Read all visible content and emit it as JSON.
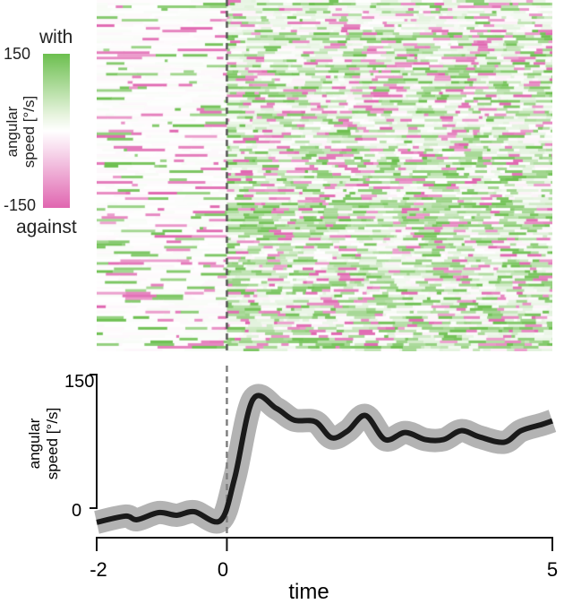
{
  "colorbar": {
    "top_label": "with",
    "bottom_label": "against",
    "max": "150",
    "min": "-150",
    "label_line1": "angular",
    "label_line2": "speed [°/s]",
    "colors": {
      "max": "#6cbf4f",
      "mid": "#ffffff",
      "min": "#e066b0"
    }
  },
  "chart_data": [
    {
      "type": "heatmap",
      "title": "",
      "xlim": [
        -2,
        5
      ],
      "clim": [
        -150,
        150
      ],
      "rows": 130,
      "event_time": 0,
      "description_values": {
        "pre_event": "mostly near 0 with sparse streaks",
        "post_event": "mostly positive (green) with scattered negative"
      }
    },
    {
      "type": "line",
      "ylabel_line1": "angular",
      "ylabel_line2": "speed [°/s]",
      "xlabel": "time",
      "xlim": [
        -2,
        5
      ],
      "ylim": [
        -15,
        150
      ],
      "xticks": [
        "-2",
        "0",
        "5"
      ],
      "yticks": [
        "0",
        "150"
      ],
      "event_time": 0,
      "x": [
        -2,
        -1.56,
        -1.38,
        -1.05,
        -0.77,
        -0.5,
        -0.1,
        0.12,
        0.4,
        0.76,
        1.03,
        1.36,
        1.61,
        1.86,
        2.13,
        2.43,
        2.74,
        3.05,
        3.33,
        3.6,
        3.88,
        4.26,
        4.52,
        4.84,
        5
      ],
      "y": [
        -16,
        -9,
        -13,
        -5,
        -8,
        -4,
        -14,
        34,
        122,
        112,
        99,
        97,
        79,
        87,
        104,
        77,
        85,
        77,
        77,
        87,
        80,
        74,
        87,
        94,
        98
      ],
      "sem": 10,
      "colors": {
        "line": "#1a1a1a",
        "band": "#b3b3b3",
        "event": "#808080"
      }
    }
  ]
}
